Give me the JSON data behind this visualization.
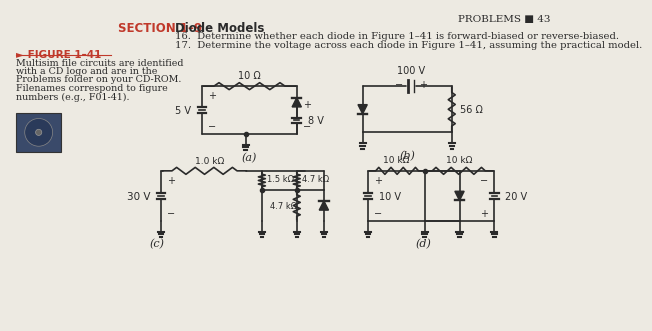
{
  "bg_color": "#edeae2",
  "title_text": "PROBLEMS ■ 43",
  "section_label": "SECTION 1–9",
  "section_title": "Diode Models",
  "prob16": "16.  Determine whether each diode in Figure 1–41 is forward-biased or reverse-biased.",
  "prob17": "17.  Determine the voltage across each diode in Figure 1–41, assuming the practical model.",
  "figure_label": "► FIGURE 1–41",
  "figure_desc": [
    "Multisim file circuits are identified",
    "with a CD logo and are in the",
    "Problems folder on your CD-ROM.",
    "Filenames correspond to figure",
    "numbers (e.g., F01-41)."
  ],
  "text_color": "#2a2a2a",
  "red_color": "#c0392b"
}
